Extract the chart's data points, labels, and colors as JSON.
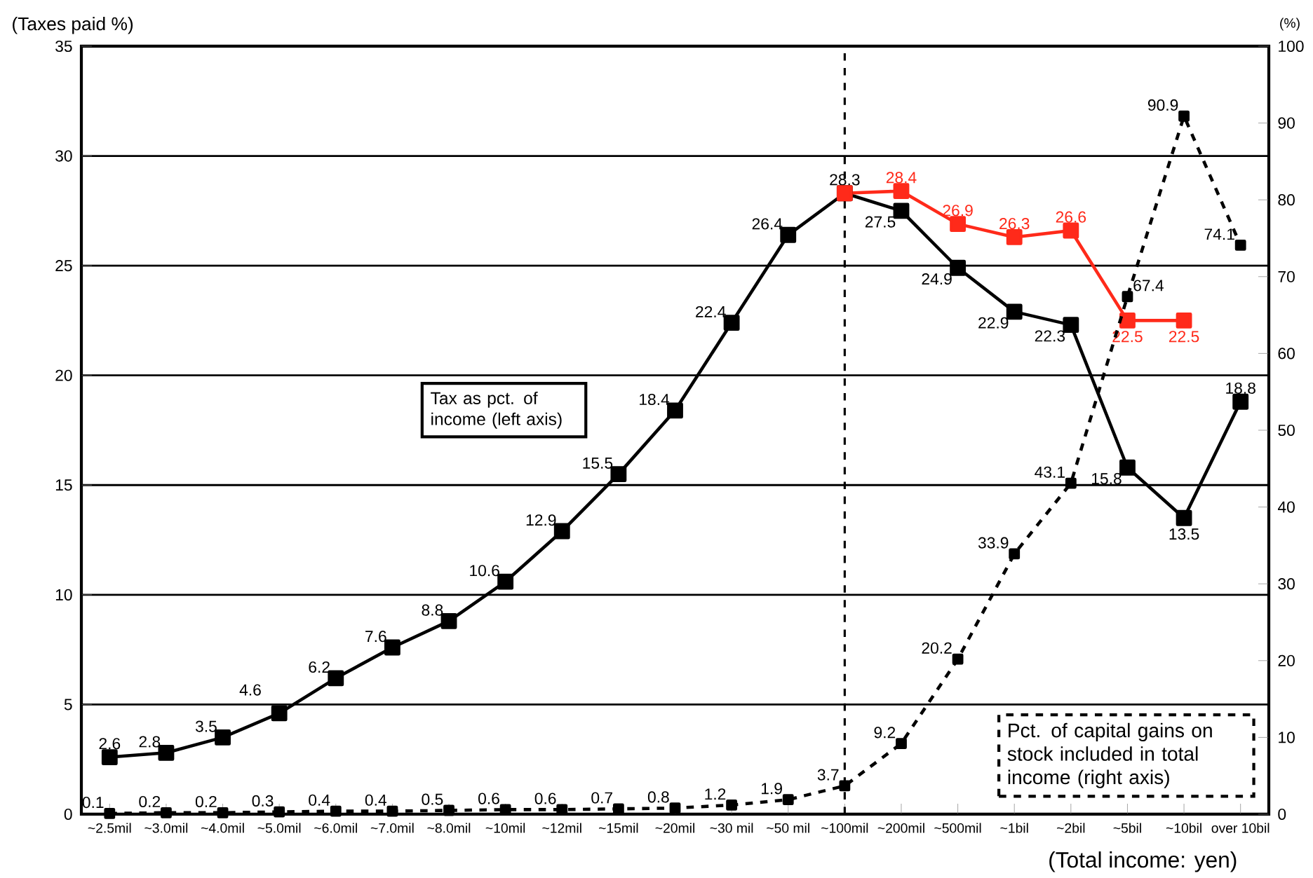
{
  "chart_data": {
    "type": "line",
    "categories": [
      "~2.5mil",
      "~3.0mil",
      "~4.0mil",
      "~5.0mil",
      "~6.0mil",
      "~7.0mil",
      "~8.0mil",
      "~10mil",
      "~12mil",
      "~15mil",
      "~20mil",
      "~30 mil",
      "~50 mil",
      "~100mil",
      "~200mil",
      "~500mil",
      "~1bil",
      "~2bil",
      "~5bil",
      "~10bil",
      "over 10bil"
    ],
    "ylabel": "(Taxes paid %)",
    "y2label": "(%)",
    "annotations": [
      "Tax as pct. of income (left axis)",
      "Pct. of capital gains on stock included in total income (right axis)",
      "(Total income: yen)"
    ],
    "ylim": [
      0,
      35
    ],
    "yticks": [
      0,
      5,
      10,
      15,
      20,
      25,
      30,
      35
    ],
    "y2lim": [
      0,
      100
    ],
    "y2ticks": [
      0,
      10,
      20,
      30,
      40,
      50,
      60,
      70,
      80,
      90,
      100
    ],
    "grid": "y",
    "legend": false,
    "ref_lines": [
      {
        "axis": "x",
        "value": "~100mil",
        "line_style": "dashed"
      }
    ],
    "series": [
      {
        "color": "#000000",
        "marker": "square",
        "line_style": "solid",
        "values": [
          2.6,
          2.8,
          3.5,
          4.6,
          6.2,
          7.6,
          8.8,
          10.6,
          12.9,
          15.5,
          18.4,
          22.4,
          26.4,
          28.3,
          27.5,
          24.9,
          22.9,
          22.3,
          15.8,
          13.5,
          18.8
        ],
        "value_labels": [
          "2.6",
          "2.8",
          "3.5",
          "4.6",
          "6.2",
          "7.6",
          "8.8",
          "10.6",
          "12.9",
          "15.5",
          "18.4",
          "22.4",
          "26.4",
          "28.3",
          "27.5",
          "24.9",
          "22.9",
          "22.3",
          "15.8",
          "13.5",
          "18.8"
        ]
      },
      {
        "color": "#ff2a1a",
        "marker": "square",
        "line_style": "solid",
        "values": [
          null,
          null,
          null,
          null,
          null,
          null,
          null,
          null,
          null,
          null,
          null,
          null,
          null,
          28.3,
          28.4,
          26.9,
          26.3,
          26.6,
          22.5,
          22.5,
          null
        ],
        "value_labels": [
          null,
          null,
          null,
          null,
          null,
          null,
          null,
          null,
          null,
          null,
          null,
          null,
          null,
          null,
          "28.4",
          "26.9",
          "26.3",
          "26.6",
          "22.5",
          "22.5",
          null
        ]
      },
      {
        "color": "#000000",
        "marker": "square",
        "line_style": "dashed",
        "axis": "y2",
        "values": [
          0.1,
          0.2,
          0.2,
          0.3,
          0.4,
          0.4,
          0.5,
          0.6,
          0.6,
          0.7,
          0.8,
          1.2,
          1.9,
          3.7,
          9.2,
          20.2,
          33.9,
          43.1,
          67.4,
          90.9,
          74.1
        ],
        "value_labels": [
          "0.1",
          "0.2",
          "0.2",
          "0.3",
          "0.4",
          "0.4",
          "0.5",
          "0.6",
          "0.6",
          "0.7",
          "0.8",
          "1.2",
          "1.9",
          "3.7",
          "9.2",
          "20.2",
          "33.9",
          "43.1",
          "67.4",
          "90.9",
          "74.1"
        ]
      }
    ]
  }
}
